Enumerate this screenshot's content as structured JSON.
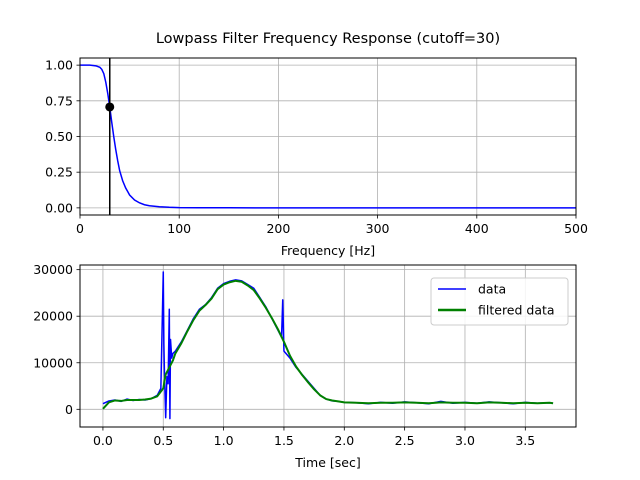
{
  "chart_data": [
    {
      "type": "line",
      "title": "Lowpass Filter Frequency Response (cutoff=30)",
      "xlabel": "Frequency [Hz]",
      "ylabel": "",
      "xlim": [
        0,
        500
      ],
      "ylim": [
        -0.05,
        1.05
      ],
      "xticks": [
        0,
        100,
        200,
        300,
        400,
        500
      ],
      "xtick_labels": [
        "0",
        "100",
        "200",
        "300",
        "400",
        "500"
      ],
      "yticks": [
        0.0,
        0.25,
        0.5,
        0.75,
        1.0
      ],
      "ytick_labels": [
        "0.00",
        "0.25",
        "0.50",
        "0.75",
        "1.00"
      ],
      "grid": true,
      "series": [
        {
          "color": "#0000ff",
          "x": [
            0,
            10,
            16,
            20,
            22,
            24,
            26,
            28,
            30,
            32,
            34,
            36,
            38,
            40,
            43,
            46,
            50,
            55,
            60,
            65,
            70,
            80,
            90,
            100,
            120,
            150,
            200,
            300,
            400,
            500
          ],
          "y": [
            1.0,
            1.0,
            0.995,
            0.985,
            0.97,
            0.94,
            0.88,
            0.8,
            0.707,
            0.6,
            0.5,
            0.41,
            0.33,
            0.26,
            0.19,
            0.14,
            0.09,
            0.055,
            0.035,
            0.022,
            0.015,
            0.008,
            0.004,
            0.002,
            0.001,
            0.0005,
            0.0,
            0.0,
            0.0,
            0.0
          ]
        }
      ],
      "cutoff_line": {
        "x": 30,
        "color": "#000000"
      },
      "marker": {
        "x": 30,
        "y": 0.707,
        "color": "#000000"
      }
    },
    {
      "type": "line",
      "title": "",
      "xlabel": "Time [sec]",
      "ylabel": "",
      "xlim": [
        -0.19,
        3.92
      ],
      "ylim": [
        -3800,
        31000
      ],
      "xticks": [
        0.0,
        0.5,
        1.0,
        1.5,
        2.0,
        2.5,
        3.0,
        3.5
      ],
      "xtick_labels": [
        "0.0",
        "0.5",
        "1.0",
        "1.5",
        "2.0",
        "2.5",
        "3.0",
        "3.5"
      ],
      "yticks": [
        0,
        10000,
        20000,
        30000
      ],
      "ytick_labels": [
        "0",
        "10000",
        "20000",
        "30000"
      ],
      "grid": true,
      "legend_position": "upper right",
      "series": [
        {
          "name": "data",
          "color": "#0000ff",
          "x": [
            0.0,
            0.05,
            0.1,
            0.15,
            0.2,
            0.25,
            0.3,
            0.35,
            0.4,
            0.45,
            0.48,
            0.5,
            0.505,
            0.51,
            0.52,
            0.53,
            0.54,
            0.55,
            0.555,
            0.56,
            0.57,
            0.58,
            0.6,
            0.65,
            0.7,
            0.75,
            0.8,
            0.85,
            0.9,
            0.95,
            1.0,
            1.05,
            1.1,
            1.15,
            1.2,
            1.25,
            1.3,
            1.35,
            1.4,
            1.45,
            1.48,
            1.49,
            1.5,
            1.55,
            1.6,
            1.65,
            1.7,
            1.75,
            1.8,
            1.85,
            1.9,
            1.95,
            2.0,
            2.1,
            2.2,
            2.3,
            2.4,
            2.5,
            2.6,
            2.7,
            2.8,
            2.9,
            3.0,
            3.1,
            3.2,
            3.3,
            3.4,
            3.5,
            3.6,
            3.7,
            3.73
          ],
          "y": [
            1200,
            1800,
            2000,
            1700,
            2200,
            1900,
            2100,
            2000,
            2300,
            3000,
            4500,
            29500,
            14000,
            7500,
            -1800,
            7000,
            5500,
            21500,
            -2000,
            15000,
            11000,
            12000,
            12500,
            14500,
            17000,
            19500,
            21500,
            22500,
            24000,
            26000,
            27000,
            27500,
            27800,
            27600,
            26800,
            26000,
            24000,
            22000,
            19500,
            17000,
            15500,
            23500,
            12500,
            11000,
            9000,
            7500,
            6000,
            4500,
            3000,
            2200,
            1800,
            1700,
            1500,
            1400,
            1200,
            1500,
            1300,
            1600,
            1400,
            1200,
            1700,
            1300,
            1500,
            1300,
            1600,
            1400,
            1200,
            1500,
            1300,
            1400,
            1300
          ]
        },
        {
          "name": "filtered data",
          "color": "#008000",
          "x": [
            0.0,
            0.05,
            0.1,
            0.15,
            0.2,
            0.25,
            0.3,
            0.35,
            0.4,
            0.45,
            0.5,
            0.52,
            0.55,
            0.58,
            0.6,
            0.65,
            0.7,
            0.75,
            0.8,
            0.85,
            0.9,
            0.95,
            1.0,
            1.05,
            1.1,
            1.15,
            1.2,
            1.25,
            1.3,
            1.35,
            1.4,
            1.45,
            1.5,
            1.55,
            1.6,
            1.65,
            1.7,
            1.75,
            1.8,
            1.85,
            1.9,
            1.95,
            2.0,
            2.1,
            2.2,
            2.3,
            2.4,
            2.5,
            2.6,
            2.7,
            2.8,
            2.9,
            3.0,
            3.1,
            3.2,
            3.3,
            3.4,
            3.5,
            3.6,
            3.7,
            3.73
          ],
          "y": [
            100,
            1500,
            1900,
            1800,
            2000,
            2000,
            2000,
            2100,
            2300,
            2800,
            4500,
            7500,
            9000,
            10500,
            12000,
            14200,
            16800,
            19200,
            21200,
            22400,
            23800,
            25800,
            26800,
            27300,
            27600,
            27400,
            26600,
            25600,
            23800,
            21800,
            19600,
            17200,
            14500,
            11500,
            9200,
            7400,
            5800,
            4300,
            3000,
            2200,
            1900,
            1700,
            1500,
            1400,
            1300,
            1400,
            1400,
            1500,
            1400,
            1300,
            1500,
            1400,
            1400,
            1300,
            1500,
            1400,
            1300,
            1400,
            1300,
            1400,
            1300
          ]
        }
      ]
    }
  ]
}
